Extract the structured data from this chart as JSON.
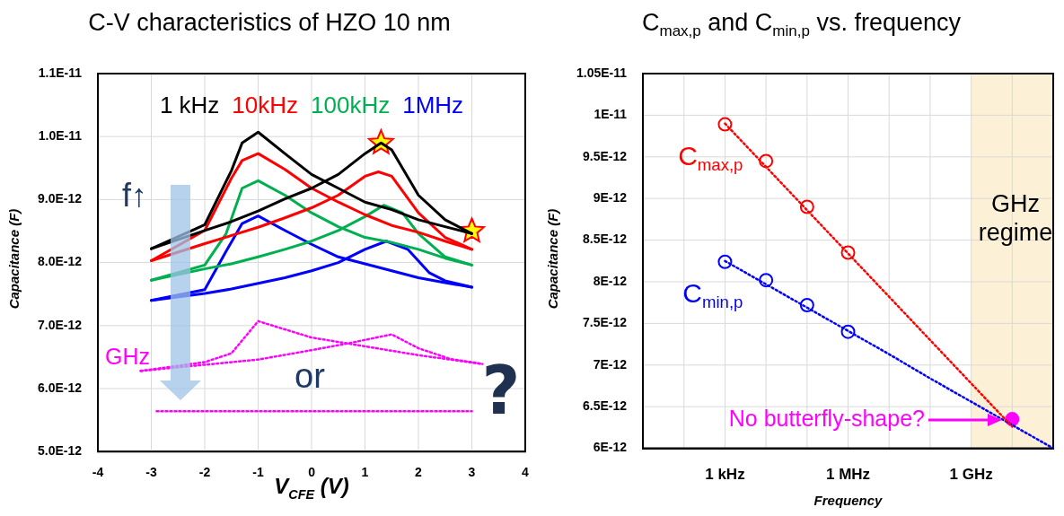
{
  "chart_data": [
    {
      "type": "line",
      "title": "C-V characteristics of HZO 10 nm",
      "xlabel": "V$_{CFE}$ (V)",
      "ylabel": "Capacitance (F)",
      "xlim": [
        -4,
        4
      ],
      "xticks": [
        -4,
        -3,
        -2,
        -1,
        0,
        1,
        2,
        3,
        4
      ],
      "ylim": [
        5e-12,
        1.1e-11
      ],
      "yticks": [
        {
          "value": 5e-12,
          "label": "5.0E-12"
        },
        {
          "value": 6e-12,
          "label": "6.0E-12"
        },
        {
          "value": 7e-12,
          "label": "7.0E-12"
        },
        {
          "value": 8e-12,
          "label": "8.0E-12"
        },
        {
          "value": 9e-12,
          "label": "9.0E-12"
        },
        {
          "value": 1e-11,
          "label": "1.0E-11"
        },
        {
          "value": 1.1e-11,
          "label": "1.1E-11"
        }
      ],
      "grid": true,
      "legend": "top",
      "marker": "none",
      "series": [
        {
          "name": "1 kHz",
          "color": "#000000",
          "x": [
            -3,
            -2,
            -1.5,
            -1,
            -0.5,
            0,
            0.5,
            1,
            1.3,
            1.5,
            2,
            2.5,
            3
          ],
          "values": [
            8.22e-12,
            8.51e-12,
            8.65e-12,
            8.82e-12,
            9.01e-12,
            9.18e-12,
            9.4e-12,
            9.73e-12,
            9.9e-12,
            9.79e-12,
            9.07e-12,
            8.68e-12,
            8.46e-12
          ]
        },
        {
          "color": "#000000",
          "x": [
            -3,
            -2,
            -1.5,
            -1.3,
            -1,
            -0.5,
            0,
            0.5,
            1,
            1.5,
            2,
            2.5,
            3
          ],
          "values": [
            8.22e-12,
            8.6e-12,
            9.46e-12,
            9.9e-12,
            1.007e-11,
            9.73e-12,
            9.4e-12,
            9.18e-12,
            8.96e-12,
            8.84e-12,
            8.68e-12,
            8.57e-12,
            8.46e-12
          ]
        },
        {
          "name": "10kHz",
          "color": "#ff0000",
          "x": [
            -3,
            -2,
            -1.5,
            -1,
            -0.5,
            0,
            0.5,
            1,
            1.25,
            1.5,
            2,
            2.5,
            3
          ],
          "values": [
            8.03e-12,
            8.3e-12,
            8.43e-12,
            8.56e-12,
            8.71e-12,
            8.87e-12,
            9.07e-12,
            9.37e-12,
            9.44e-12,
            9.37e-12,
            8.79e-12,
            8.4e-12,
            8.21e-12
          ]
        },
        {
          "color": "#ff0000",
          "x": [
            -3,
            -2,
            -1.5,
            -1.3,
            -1,
            -0.5,
            0,
            0.5,
            1,
            1.5,
            2,
            2.5,
            3
          ],
          "values": [
            8.03e-12,
            8.51e-12,
            9.34e-12,
            9.62e-12,
            9.73e-12,
            9.48e-12,
            9.18e-12,
            8.96e-12,
            8.76e-12,
            8.59e-12,
            8.48e-12,
            8.34e-12,
            8.21e-12
          ]
        },
        {
          "name": "100kHz",
          "color": "#00b050",
          "x": [
            -3,
            -2,
            -1.5,
            -1,
            -0.5,
            0,
            0.5,
            1,
            1.35,
            1.7,
            2,
            2.5,
            3
          ],
          "values": [
            7.72e-12,
            7.9e-12,
            7.98e-12,
            8.09e-12,
            8.21e-12,
            8.34e-12,
            8.51e-12,
            8.73e-12,
            8.91e-12,
            8.79e-12,
            8.46e-12,
            8.09e-12,
            7.96e-12
          ]
        },
        {
          "color": "#00b050",
          "x": [
            -3,
            -2,
            -1.6,
            -1.3,
            -1,
            -0.5,
            0,
            0.5,
            1,
            1.5,
            2,
            2.5,
            3
          ],
          "values": [
            7.72e-12,
            7.96e-12,
            8.46e-12,
            9.18e-12,
            9.3e-12,
            9.07e-12,
            8.79e-12,
            8.57e-12,
            8.4e-12,
            8.32e-12,
            8.21e-12,
            8.07e-12,
            7.96e-12
          ]
        },
        {
          "name": "1MHz",
          "color": "#0000ff",
          "x": [
            -3,
            -2,
            -1.5,
            -1,
            -0.5,
            0,
            0.5,
            1,
            1.4,
            1.8,
            2.2,
            2.5,
            3
          ],
          "values": [
            7.4e-12,
            7.51e-12,
            7.58e-12,
            7.67e-12,
            7.76e-12,
            7.87e-12,
            8e-12,
            8.21e-12,
            8.34e-12,
            8.21e-12,
            7.84e-12,
            7.71e-12,
            7.61e-12
          ]
        },
        {
          "color": "#0000ff",
          "x": [
            -3,
            -2,
            -1.6,
            -1.3,
            -1,
            -0.5,
            0,
            0.5,
            1,
            1.5,
            2,
            2.5,
            3
          ],
          "values": [
            7.4e-12,
            7.57e-12,
            8.18e-12,
            8.62e-12,
            8.74e-12,
            8.51e-12,
            8.29e-12,
            8.09e-12,
            7.98e-12,
            7.87e-12,
            7.76e-12,
            7.68e-12,
            7.61e-12
          ]
        },
        {
          "color": "#ff00ff",
          "line_style": "dotted",
          "x": [
            -3.2,
            -1,
            0,
            0.7,
            1.5,
            2,
            2.6,
            3.2
          ],
          "values": [
            6.28e-12,
            6.46e-12,
            6.61e-12,
            6.72e-12,
            6.86e-12,
            6.64e-12,
            6.47e-12,
            6.39e-12
          ]
        },
        {
          "color": "#ff00ff",
          "line_style": "dotted",
          "x": [
            -3.2,
            -2,
            -1.5,
            -1,
            0,
            1,
            2,
            3.2
          ],
          "values": [
            6.28e-12,
            6.42e-12,
            6.56e-12,
            7.07e-12,
            6.81e-12,
            6.67e-12,
            6.53e-12,
            6.39e-12
          ]
        },
        {
          "color": "#ff00ff",
          "line_style": "dotted",
          "x": [
            -2.9,
            3
          ],
          "values": [
            5.64e-12,
            5.64e-12
          ]
        },
        {
          "type": "scatter",
          "marker": "star",
          "color": "#ffff00",
          "x": [
            1.3,
            3
          ],
          "values": [
            9.9e-12,
            8.5e-12
          ]
        }
      ],
      "annotations": [
        "f↑",
        "or",
        "?",
        "GHz"
      ]
    },
    {
      "type": "line",
      "title": "C$_{max,p}$ and C$_{min,p}$ vs. frequency",
      "xlabel": "Frequency",
      "ylabel": "Capacitance (F)",
      "categories": [
        null,
        null,
        "1 kHz",
        null,
        null,
        "1 MHz",
        null,
        null,
        "1 GHz",
        null,
        null
      ],
      "ylim": [
        6e-12,
        1.05e-11
      ],
      "yticks": [
        {
          "value": 6e-12,
          "label": "6E-12"
        },
        {
          "value": 6.5e-12,
          "label": "6.5E-12"
        },
        {
          "value": 7e-12,
          "label": "7E-12"
        },
        {
          "value": 7.5e-12,
          "label": "7.5E-12"
        },
        {
          "value": 8e-12,
          "label": "8E-12"
        },
        {
          "value": 8.5e-12,
          "label": "8.5E-12"
        },
        {
          "value": 9e-12,
          "label": "9E-12"
        },
        {
          "value": 9.5e-12,
          "label": "9.5E-12"
        },
        {
          "value": 1e-11,
          "label": "1E-11"
        },
        {
          "value": 1.05e-11,
          "label": "1.05E-11"
        }
      ],
      "grid": true,
      "series": [
        {
          "line_style": "dotted",
          "marker": "none",
          "color": "#ff0000",
          "values": [
            null,
            null,
            9.9e-12,
            9.38e-12,
            8.86e-12,
            8.34e-12,
            7.82e-12,
            7.3e-12,
            6.78e-12,
            6.26e-12,
            null
          ]
        },
        {
          "line_style": "dotted",
          "marker": "none",
          "color": "#0000ff",
          "values": [
            null,
            null,
            8.25e-12,
            7.97e-12,
            7.69e-12,
            7.41e-12,
            7.13e-12,
            6.84e-12,
            6.56e-12,
            6.28e-12,
            6e-12
          ]
        },
        {
          "type": "scatter",
          "name": "C$_{max,p}$",
          "marker": "circle",
          "color": "#ff0000",
          "values": [
            null,
            null,
            9.89e-12,
            9.45e-12,
            8.9e-12,
            8.35e-12,
            null,
            null,
            null,
            null,
            null
          ]
        },
        {
          "type": "scatter",
          "name": "C$_{min,p}$",
          "marker": "circle",
          "color": "#0000ff",
          "values": [
            null,
            null,
            8.24e-12,
            8.02e-12,
            7.72e-12,
            7.4e-12,
            null,
            null,
            null,
            null,
            null
          ]
        },
        {
          "type": "scatter",
          "marker": "circle",
          "color": "#ff00ff",
          "values": [
            null,
            null,
            null,
            null,
            null,
            null,
            null,
            null,
            null,
            6.35e-12,
            null
          ]
        }
      ],
      "annotations": [
        "No butterfly-shape?",
        "GHz regime"
      ]
    }
  ]
}
